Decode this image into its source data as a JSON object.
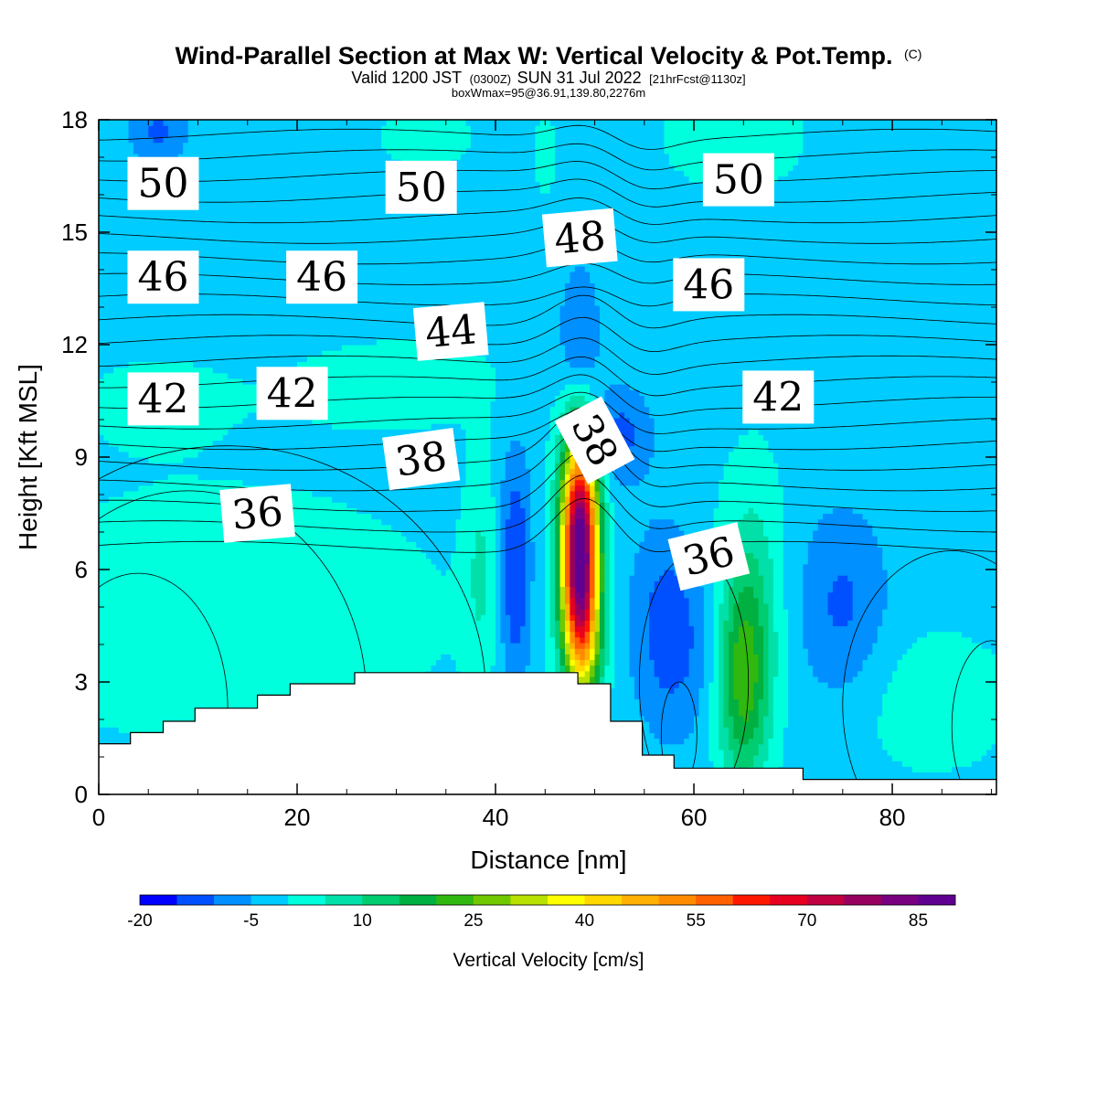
{
  "title": {
    "main": "Wind-Parallel Section at Max W: Vertical Velocity & Pot.Temp.",
    "main_suffix": "(C)",
    "valid_prefix": "Valid 1200 JST",
    "valid_z": "(0300Z)",
    "valid_date": "SUN 31 Jul 2022",
    "forecast": "[21hrFcst@1130z]",
    "box": "boxWmax=95@36.91,139.80,2276m"
  },
  "chart_data": {
    "type": "heatmap",
    "xlabel": "Distance [nm]",
    "ylabel": "Height [Kft MSL]",
    "xlim": [
      0,
      90.5
    ],
    "ylim": [
      0,
      18
    ],
    "xticks": [
      0,
      20,
      40,
      60,
      80
    ],
    "yticks": [
      0,
      3,
      6,
      9,
      12,
      15,
      18
    ],
    "background_value": -2,
    "field_features": [
      {
        "x": 48.5,
        "y": 6.5,
        "sx": 1.3,
        "sy": 2.2,
        "w": 95
      },
      {
        "x": 49.2,
        "y": 4.0,
        "sx": 1.4,
        "sy": 1.2,
        "w": 12
      },
      {
        "x": 65.0,
        "y": 3.0,
        "sx": 1.8,
        "sy": 2.0,
        "w": 22
      },
      {
        "x": 66.0,
        "y": 5.5,
        "sx": 2.3,
        "sy": 2.5,
        "w": 8
      },
      {
        "x": 58.0,
        "y": 4.5,
        "sx": 2.8,
        "sy": 1.9,
        "w": -13
      },
      {
        "x": 42.0,
        "y": 6.0,
        "sx": 1.1,
        "sy": 2.2,
        "w": -14
      },
      {
        "x": 48.5,
        "y": 11.8,
        "sx": 1.4,
        "sy": 1.4,
        "w": -12
      },
      {
        "x": 52.5,
        "y": 9.6,
        "sx": 2.2,
        "sy": 0.9,
        "w": -10
      },
      {
        "x": 75.0,
        "y": 5.0,
        "sx": 3.2,
        "sy": 1.8,
        "w": -9
      },
      {
        "x": 12.0,
        "y": 4.8,
        "sx": 16.0,
        "sy": 2.3,
        "w": 6
      },
      {
        "x": 38.5,
        "y": 6.0,
        "sx": 1.2,
        "sy": 2.0,
        "w": 7
      },
      {
        "x": 84.0,
        "y": 2.5,
        "sx": 6.0,
        "sy": 1.4,
        "w": 5
      },
      {
        "x": 30.0,
        "y": 11.0,
        "sx": 11.0,
        "sy": 1.2,
        "w": 3
      },
      {
        "x": 5.0,
        "y": 10.5,
        "sx": 6.0,
        "sy": 1.0,
        "w": 3
      },
      {
        "x": 64.0,
        "y": 17.5,
        "sx": 8.0,
        "sy": 1.5,
        "w": 3
      },
      {
        "x": 33.0,
        "y": 17.6,
        "sx": 5.0,
        "sy": 1.0,
        "w": 3
      },
      {
        "x": 45.0,
        "y": 17.0,
        "sx": 1.0,
        "sy": 1.0,
        "w": 3
      },
      {
        "x": 6.0,
        "y": 17.7,
        "sx": 2.0,
        "sy": 0.6,
        "w": -9
      },
      {
        "x": 60.0,
        "y": 6.0,
        "sx": 2.0,
        "sy": 2.0,
        "w": 3
      }
    ],
    "terrain_kft": [
      [
        0,
        1.35
      ],
      [
        3.2,
        1.35
      ],
      [
        3.2,
        1.65
      ],
      [
        6.5,
        1.65
      ],
      [
        6.5,
        1.95
      ],
      [
        9.7,
        1.95
      ],
      [
        9.7,
        2.3
      ],
      [
        16,
        2.3
      ],
      [
        16,
        2.65
      ],
      [
        19.3,
        2.65
      ],
      [
        19.3,
        2.95
      ],
      [
        25.8,
        2.95
      ],
      [
        25.8,
        3.25
      ],
      [
        48.3,
        3.25
      ],
      [
        48.3,
        2.95
      ],
      [
        51.6,
        2.95
      ],
      [
        51.6,
        1.95
      ],
      [
        54.8,
        1.95
      ],
      [
        54.8,
        1.05
      ],
      [
        58,
        1.05
      ],
      [
        58,
        0.7
      ],
      [
        71,
        0.7
      ],
      [
        71,
        0.4
      ],
      [
        90.5,
        0.4
      ]
    ],
    "theta_contour_labels": [
      {
        "text": "50",
        "x": 6.5,
        "y": 16.3,
        "angle": 0
      },
      {
        "text": "50",
        "x": 32.5,
        "y": 16.2,
        "angle": 0
      },
      {
        "text": "50",
        "x": 64.5,
        "y": 16.4,
        "angle": 0
      },
      {
        "text": "48",
        "x": 48.5,
        "y": 14.85,
        "angle": -5
      },
      {
        "text": "46",
        "x": 6.5,
        "y": 13.8,
        "angle": 0
      },
      {
        "text": "46",
        "x": 22.5,
        "y": 13.8,
        "angle": 0
      },
      {
        "text": "46",
        "x": 61.5,
        "y": 13.6,
        "angle": 0
      },
      {
        "text": "44",
        "x": 35.5,
        "y": 12.35,
        "angle": -5
      },
      {
        "text": "42",
        "x": 6.5,
        "y": 10.55,
        "angle": 0
      },
      {
        "text": "42",
        "x": 19.5,
        "y": 10.7,
        "angle": 0
      },
      {
        "text": "42",
        "x": 68.5,
        "y": 10.6,
        "angle": 0
      },
      {
        "text": "38",
        "x": 32.5,
        "y": 8.95,
        "angle": -8
      },
      {
        "text": "38",
        "x": 50.0,
        "y": 9.45,
        "angle": 62
      },
      {
        "text": "36",
        "x": 16.0,
        "y": 7.5,
        "angle": -5
      },
      {
        "text": "36",
        "x": 61.5,
        "y": 6.35,
        "angle": -14
      }
    ],
    "colorbar": {
      "label": "Vertical Velocity [cm/s]",
      "min": -20,
      "step": 5,
      "tick_labels": [
        "-20",
        "-5",
        "10",
        "25",
        "40",
        "55",
        "70",
        "85"
      ],
      "colors": [
        "#0000ff",
        "#0050ff",
        "#0090ff",
        "#00ccff",
        "#00ffdd",
        "#00e0a8",
        "#00cc70",
        "#00b040",
        "#30b810",
        "#70c800",
        "#b8e000",
        "#ffff00",
        "#ffd800",
        "#ffb000",
        "#ff8c00",
        "#ff6000",
        "#ff1800",
        "#e80020",
        "#c00040",
        "#980060",
        "#780080",
        "#600090"
      ]
    }
  }
}
